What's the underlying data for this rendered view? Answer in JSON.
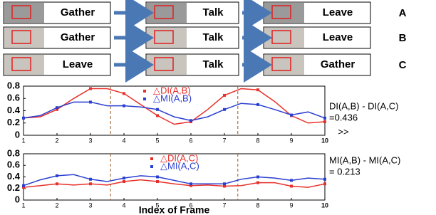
{
  "rows": [
    {
      "steps": [
        "Gather",
        "Talk",
        "Leave"
      ],
      "label": "A"
    },
    {
      "steps": [
        "Gather",
        "Talk",
        "Leave"
      ],
      "label": "B"
    },
    {
      "steps": [
        "Leave",
        "Talk",
        "Gather"
      ],
      "label": "C"
    }
  ],
  "chart_data": [
    {
      "type": "line",
      "x": [
        1,
        1.5,
        2,
        2.5,
        3,
        3.5,
        4,
        4.5,
        5,
        5.5,
        6,
        6.5,
        7,
        7.5,
        8,
        8.5,
        9,
        9.5,
        10
      ],
      "series": [
        {
          "name": "△DI(A,B)",
          "color": "#e8302a",
          "values": [
            0.28,
            0.3,
            0.42,
            0.6,
            0.76,
            0.76,
            0.68,
            0.5,
            0.32,
            0.18,
            0.22,
            0.42,
            0.65,
            0.76,
            0.74,
            0.55,
            0.32,
            0.2,
            0.22
          ]
        },
        {
          "name": "△MI(A,B)",
          "color": "#2a3fcf",
          "values": [
            0.28,
            0.32,
            0.45,
            0.54,
            0.54,
            0.48,
            0.48,
            0.46,
            0.42,
            0.3,
            0.24,
            0.3,
            0.42,
            0.52,
            0.5,
            0.42,
            0.33,
            0.38,
            0.28
          ]
        }
      ],
      "xlim": [
        1,
        10
      ],
      "xticks": [
        1,
        2,
        3,
        4,
        5,
        6,
        7,
        8,
        9,
        10
      ],
      "ylim": [
        0,
        0.8
      ],
      "yticks": [
        0,
        0.2,
        0.4,
        0.6,
        0.8
      ],
      "vlines": [
        3.6,
        7.4
      ],
      "annotations": [
        "DI(A,B) - DI(A,C)",
        "=0.436",
        ">>"
      ]
    },
    {
      "type": "line",
      "x": [
        1,
        1.5,
        2,
        2.5,
        3,
        3.5,
        4,
        4.5,
        5,
        5.5,
        6,
        6.5,
        7,
        7.5,
        8,
        8.5,
        9,
        9.5,
        10
      ],
      "series": [
        {
          "name": "△DI(A,C)",
          "color": "#e8302a",
          "values": [
            0.22,
            0.25,
            0.28,
            0.26,
            0.28,
            0.26,
            0.32,
            0.35,
            0.32,
            0.28,
            0.25,
            0.26,
            0.24,
            0.25,
            0.3,
            0.3,
            0.24,
            0.22,
            0.28
          ]
        },
        {
          "name": "△MI(A,C)",
          "color": "#2a3fcf",
          "values": [
            0.25,
            0.35,
            0.42,
            0.44,
            0.36,
            0.32,
            0.38,
            0.42,
            0.4,
            0.34,
            0.28,
            0.28,
            0.28,
            0.36,
            0.4,
            0.38,
            0.34,
            0.38,
            0.36
          ]
        }
      ],
      "xlim": [
        1,
        10
      ],
      "xticks": [
        1,
        2,
        3,
        4,
        5,
        6,
        7,
        8,
        9,
        10
      ],
      "ylim": [
        0,
        0.8
      ],
      "yticks": [
        0,
        0.2,
        0.4,
        0.6,
        0.8
      ],
      "vlines": [
        3.6,
        7.4
      ],
      "xlabel": "Index of Frame",
      "annotations": [
        "MI(A,B) - MI(A,C)",
        "= 0.213"
      ]
    }
  ]
}
